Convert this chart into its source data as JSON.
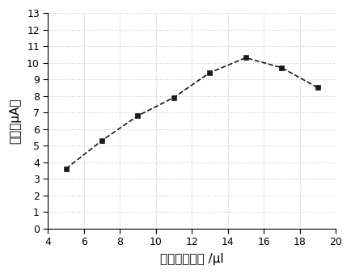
{
  "x": [
    5,
    7,
    9,
    11,
    13,
    15,
    17,
    19
  ],
  "y": [
    3.6,
    5.3,
    6.8,
    7.9,
    9.4,
    10.3,
    9.7,
    8.5
  ],
  "xlabel": "二氧化钓用量 /μl",
  "ylabel": "电流（μA）",
  "xlim": [
    4,
    20
  ],
  "ylim": [
    0,
    13
  ],
  "xticks": [
    4,
    6,
    8,
    10,
    12,
    14,
    16,
    18,
    20
  ],
  "yticks": [
    0,
    1,
    2,
    3,
    4,
    5,
    6,
    7,
    8,
    9,
    10,
    11,
    12,
    13
  ],
  "line_color": "#1a1a1a",
  "marker": "s",
  "marker_size": 5,
  "marker_color": "#1a1a1a",
  "line_width": 1.2,
  "background_color": "#ffffff",
  "grid_color": "#c8c8c8",
  "label_fontsize": 11,
  "tick_fontsize": 9,
  "cjk_fonts": [
    "Noto Sans CJK SC",
    "Noto Serif CJK SC",
    "Source Han Sans CN",
    "WenQuanYi Zen Hei",
    "WenQuanYi Micro Hei",
    "AR PL UMing CN",
    "SimHei",
    "Microsoft YaHei",
    "STSong",
    "PingFang SC"
  ]
}
